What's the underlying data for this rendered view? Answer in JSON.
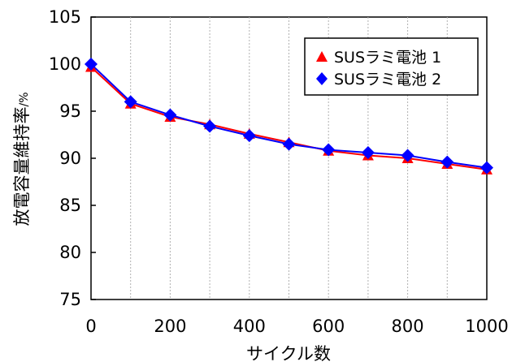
{
  "chart_data": {
    "type": "line",
    "xlabel": "サイクル数",
    "ylabel": "放電容量維持率",
    "ylabel_unit": "/%",
    "xlim": [
      0,
      1000
    ],
    "ylim": [
      75,
      105
    ],
    "x_ticks": [
      0,
      200,
      400,
      600,
      800,
      1000
    ],
    "y_ticks": [
      75,
      80,
      85,
      90,
      95,
      100,
      105
    ],
    "grid": {
      "vertical": "dotted",
      "horizontal": "none"
    },
    "legend_position": "top-right",
    "x": [
      0,
      100,
      200,
      300,
      400,
      500,
      600,
      700,
      800,
      900,
      1000
    ],
    "series": [
      {
        "name": "SUSラミ電池 1",
        "marker": "triangle",
        "color": "#ff0000",
        "values": [
          99.7,
          95.8,
          94.4,
          93.6,
          92.6,
          91.7,
          90.8,
          90.3,
          90.0,
          89.4,
          88.8
        ]
      },
      {
        "name": "SUSラミ電池 2",
        "marker": "diamond",
        "color": "#0000ff",
        "values": [
          100.0,
          96.0,
          94.6,
          93.4,
          92.4,
          91.5,
          90.9,
          90.6,
          90.3,
          89.6,
          89.0
        ]
      }
    ]
  }
}
